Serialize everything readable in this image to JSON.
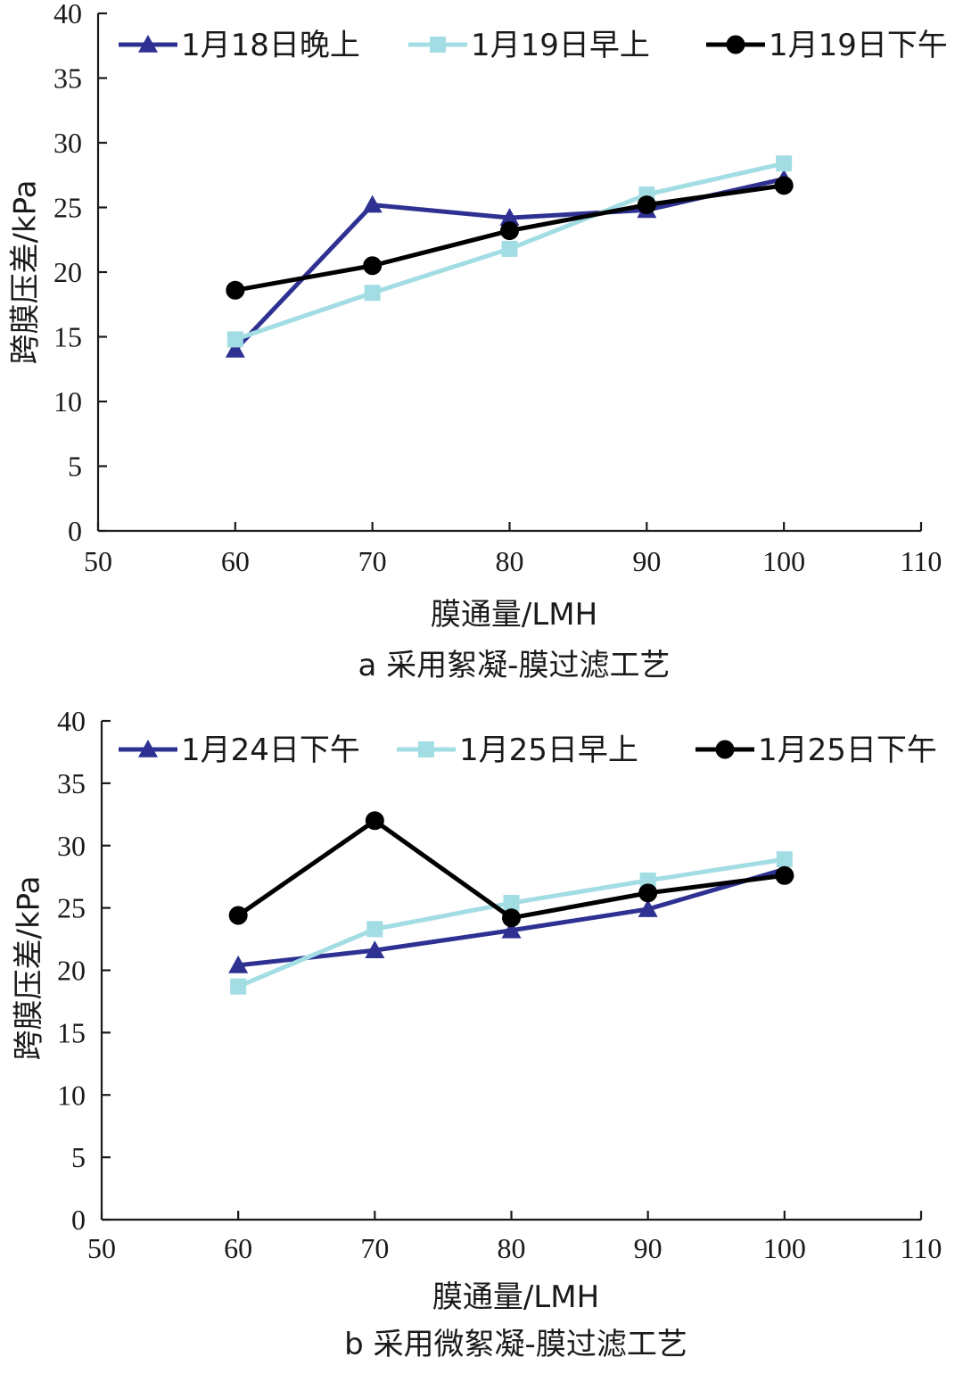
{
  "chart_data": [
    {
      "type": "line",
      "caption": "a 采用絮凝-膜过滤工艺",
      "xlabel": "膜通量/LMH",
      "ylabel": "跨膜压差/kPa",
      "xlim": [
        50,
        110
      ],
      "ylim": [
        0,
        40
      ],
      "xticks": [
        "50",
        "60",
        "70",
        "80",
        "90",
        "100",
        "110"
      ],
      "yticks": [
        "0",
        "5",
        "10",
        "15",
        "20",
        "25",
        "30",
        "35",
        "40"
      ],
      "x": [
        60,
        70,
        80,
        90,
        100
      ],
      "legend_position": "top",
      "series": [
        {
          "name": "1月18日晚上",
          "values": [
            14.0,
            25.2,
            24.2,
            24.8,
            27.2
          ],
          "color": "#2e3192",
          "marker": "triangle"
        },
        {
          "name": "1月19日早上",
          "values": [
            14.8,
            18.4,
            21.8,
            26.0,
            28.4
          ],
          "color": "#a3dde4",
          "marker": "square"
        },
        {
          "name": "1月19日下午",
          "values": [
            18.6,
            20.5,
            23.2,
            25.2,
            26.7
          ],
          "color": "#000000",
          "marker": "circle"
        }
      ]
    },
    {
      "type": "line",
      "caption": "b 采用微絮凝-膜过滤工艺",
      "xlabel": "膜通量/LMH",
      "ylabel": "跨膜压差/kPa",
      "xlim": [
        50,
        110
      ],
      "ylim": [
        0,
        40
      ],
      "xticks": [
        "50",
        "60",
        "70",
        "80",
        "90",
        "100",
        "110"
      ],
      "yticks": [
        "0",
        "5",
        "10",
        "15",
        "20",
        "25",
        "30",
        "35",
        "40"
      ],
      "x": [
        60,
        70,
        80,
        90,
        100
      ],
      "legend_position": "top",
      "series": [
        {
          "name": "1月24日下午",
          "values": [
            20.4,
            21.6,
            23.2,
            24.9,
            28.1
          ],
          "color": "#2e3192",
          "marker": "triangle"
        },
        {
          "name": "1月25日早上",
          "values": [
            18.7,
            23.3,
            25.4,
            27.2,
            28.9
          ],
          "color": "#a3dde4",
          "marker": "square"
        },
        {
          "name": "1月25日下午",
          "values": [
            24.4,
            32.0,
            24.2,
            26.2,
            27.6
          ],
          "color": "#000000",
          "marker": "circle"
        }
      ]
    }
  ]
}
